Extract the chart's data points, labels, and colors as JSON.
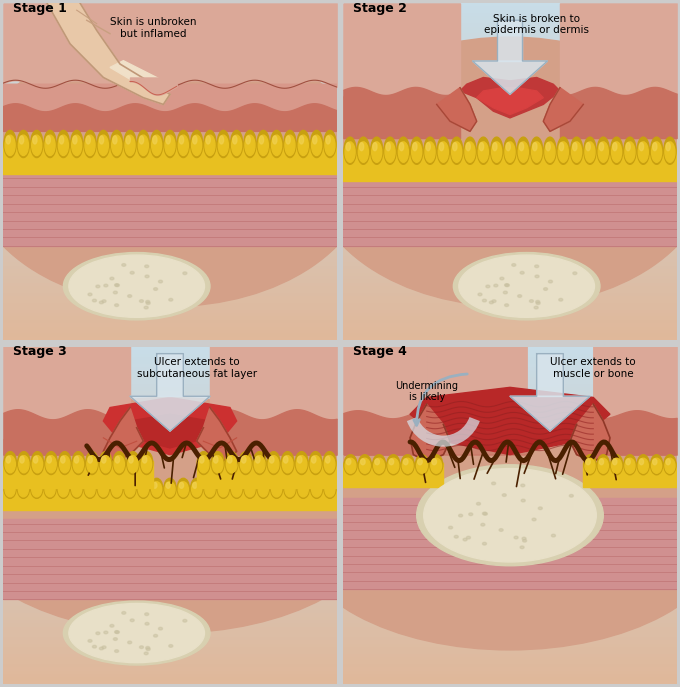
{
  "stages": [
    {
      "label": "Stage 1",
      "description": "Skin is unbroken\nbut inflamed"
    },
    {
      "label": "Stage 2",
      "description": "Skin is broken to\nepidermis or dermis"
    },
    {
      "label": "Stage 3",
      "description": "Ulcer extends to\nsubcutaneous fat layer"
    },
    {
      "label": "Stage 4",
      "description": "Ulcer extends to\nmuscle or bone",
      "sub": "Undermining\nis likely"
    }
  ],
  "bg_top": "#c5dde8",
  "bg_bottom": "#e8c8b0",
  "skin_outer": "#d4a088",
  "skin_mid": "#c87868",
  "skin_inner": "#c06858",
  "dermis_color": "#d08878",
  "fat_yellow": "#e8c020",
  "fat_dark": "#c8a010",
  "fat_base": "#d4a800",
  "muscle_pink": "#d09090",
  "muscle_dark": "#c07878",
  "muscle_stripe": "#b86868",
  "bone_light": "#e8e0c8",
  "bone_mid": "#d8d0b0",
  "bone_dark": "#c8c0a0",
  "wound_red": "#c03030",
  "wound_dark": "#8b1a1a",
  "necrosis": "#4a2000",
  "arrow_fill": "#d8e4ec",
  "arrow_edge": "#9ab0c0",
  "text_color": "#000000",
  "panel_div": "#888888"
}
